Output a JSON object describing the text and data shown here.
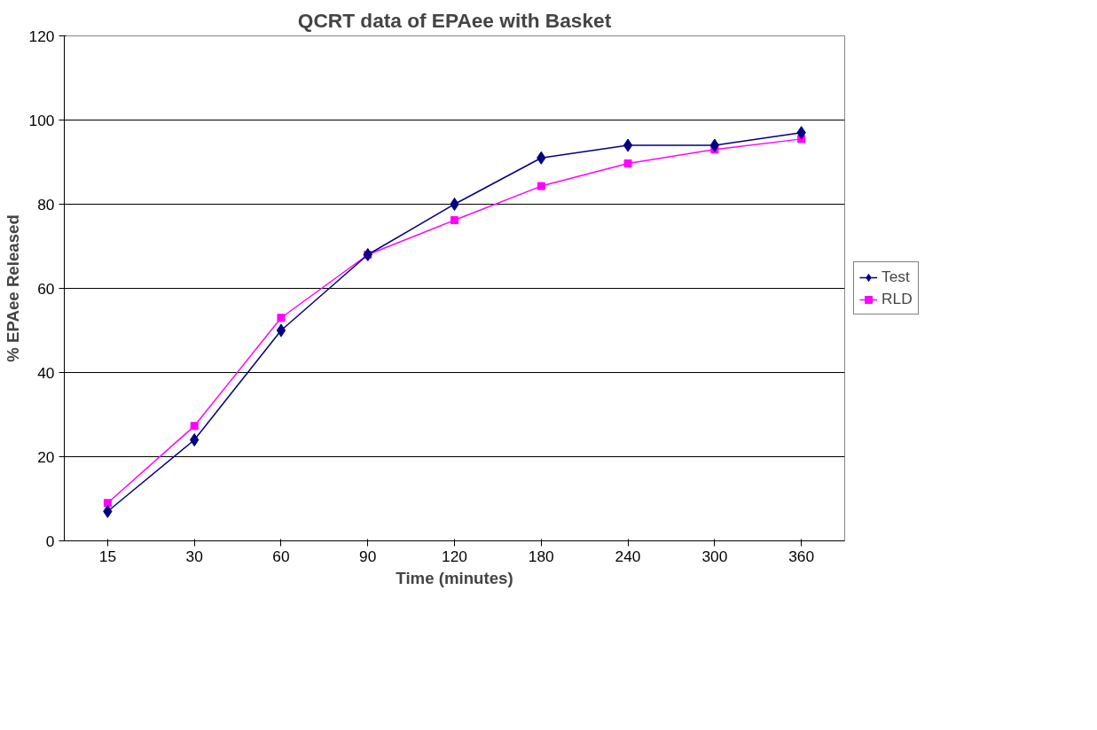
{
  "chart_data": {
    "type": "line",
    "title": "QCRT data of EPAee with Basket",
    "xlabel": "Time (minutes)",
    "ylabel": "% EPAee Released",
    "categories": [
      "15",
      "30",
      "60",
      "90",
      "120",
      "180",
      "240",
      "300",
      "360"
    ],
    "series": [
      {
        "name": "Test",
        "color": "#000080",
        "marker": "diamond",
        "values": [
          7,
          24,
          50,
          68,
          80,
          91,
          94,
          94,
          97
        ]
      },
      {
        "name": "RLD",
        "color": "#ff00ff",
        "marker": "square",
        "values": [
          9,
          27.3,
          53,
          68,
          76.2,
          84.3,
          89.7,
          93,
          95.5
        ]
      }
    ],
    "ylim": [
      0,
      120
    ],
    "yticks": [
      0,
      20,
      40,
      60,
      80,
      100,
      120
    ],
    "grid": "y",
    "legend": "right"
  }
}
